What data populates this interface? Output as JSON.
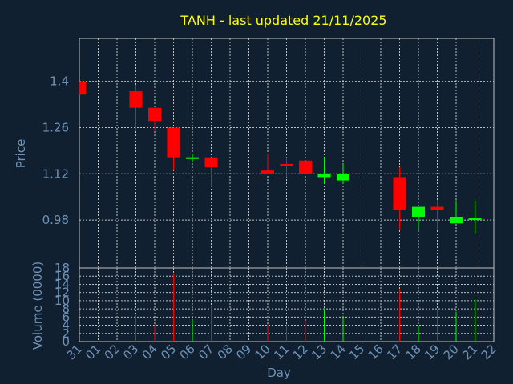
{
  "chart_data": [
    {
      "type": "candlestick",
      "title": "TANH - last updated 21/11/2025",
      "xlabel": "",
      "ylabel": "Price",
      "x_ticks": [
        "31",
        "01",
        "02",
        "03",
        "04",
        "05",
        "06",
        "07",
        "08",
        "09",
        "10",
        "11",
        "12",
        "13",
        "14",
        "15",
        "16",
        "17",
        "18",
        "19",
        "20",
        "21",
        "22"
      ],
      "y_ticks": [
        1.4,
        1.26,
        1.12,
        0.98
      ],
      "ylim": [
        0.835,
        1.53
      ],
      "grid": true,
      "colors": {
        "up": "#00ff00",
        "down": "#ff0000",
        "title": "#ffff00",
        "axis_text": "#6f93b8",
        "background": "#102030",
        "grid": "#c0c0c0"
      },
      "candles": [
        {
          "day": "31",
          "open": 1.4,
          "high": 1.4,
          "low": 1.36,
          "close": 1.36
        },
        {
          "day": "03",
          "open": 1.37,
          "high": 1.39,
          "low": 1.25,
          "close": 1.32
        },
        {
          "day": "04",
          "open": 1.32,
          "high": 1.32,
          "low": 1.25,
          "close": 1.28
        },
        {
          "day": "05",
          "open": 1.26,
          "high": 1.26,
          "low": 1.13,
          "close": 1.17
        },
        {
          "day": "06",
          "open": 1.165,
          "high": 1.18,
          "low": 1.155,
          "close": 1.17
        },
        {
          "day": "07",
          "open": 1.17,
          "high": 1.17,
          "low": 1.08,
          "close": 1.14
        },
        {
          "day": "10",
          "open": 1.13,
          "high": 1.18,
          "low": 1.12,
          "close": 1.12
        },
        {
          "day": "11",
          "open": 1.15,
          "high": 1.17,
          "low": 1.11,
          "close": 1.145
        },
        {
          "day": "12",
          "open": 1.16,
          "high": 1.16,
          "low": 1.12,
          "close": 1.12
        },
        {
          "day": "13",
          "open": 1.11,
          "high": 1.17,
          "low": 1.09,
          "close": 1.12
        },
        {
          "day": "14",
          "open": 1.1,
          "high": 1.15,
          "low": 1.09,
          "close": 1.12
        },
        {
          "day": "17",
          "open": 1.11,
          "high": 1.14,
          "low": 0.95,
          "close": 1.01
        },
        {
          "day": "18",
          "open": 0.99,
          "high": 1.02,
          "low": 0.95,
          "close": 1.02
        },
        {
          "day": "19",
          "open": 1.02,
          "high": 1.04,
          "low": 0.95,
          "close": 1.01
        },
        {
          "day": "20",
          "open": 0.97,
          "high": 1.04,
          "low": 0.97,
          "close": 0.99
        },
        {
          "day": "21",
          "open": 0.985,
          "high": 1.04,
          "low": 0.94,
          "close": 0.985
        }
      ]
    },
    {
      "type": "bar",
      "title": "",
      "xlabel": "Day",
      "ylabel": "Volume (0000)",
      "x_ticks": [
        "31",
        "01",
        "02",
        "03",
        "04",
        "05",
        "06",
        "07",
        "08",
        "09",
        "10",
        "11",
        "12",
        "13",
        "14",
        "15",
        "16",
        "17",
        "18",
        "19",
        "20",
        "21",
        "22"
      ],
      "y_ticks": [
        0,
        2,
        4,
        6,
        8,
        10,
        12,
        14,
        16,
        18
      ],
      "ylim": [
        0,
        18
      ],
      "grid": true,
      "bars": [
        {
          "day": "03",
          "value": 6.5,
          "direction": "down"
        },
        {
          "day": "04",
          "value": 4.3,
          "direction": "down"
        },
        {
          "day": "05",
          "value": 16.5,
          "direction": "down"
        },
        {
          "day": "06",
          "value": 5.3,
          "direction": "up"
        },
        {
          "day": "07",
          "value": 8.8,
          "direction": "down"
        },
        {
          "day": "10",
          "value": 4.3,
          "direction": "down"
        },
        {
          "day": "11",
          "value": 4.3,
          "direction": "down"
        },
        {
          "day": "12",
          "value": 5.0,
          "direction": "down"
        },
        {
          "day": "13",
          "value": 7.8,
          "direction": "up"
        },
        {
          "day": "14",
          "value": 6.3,
          "direction": "up"
        },
        {
          "day": "17",
          "value": 12.8,
          "direction": "down"
        },
        {
          "day": "18",
          "value": 3.7,
          "direction": "up"
        },
        {
          "day": "19",
          "value": 7.6,
          "direction": "down"
        },
        {
          "day": "20",
          "value": 7.3,
          "direction": "up"
        },
        {
          "day": "21",
          "value": 10.3,
          "direction": "up"
        }
      ]
    }
  ]
}
